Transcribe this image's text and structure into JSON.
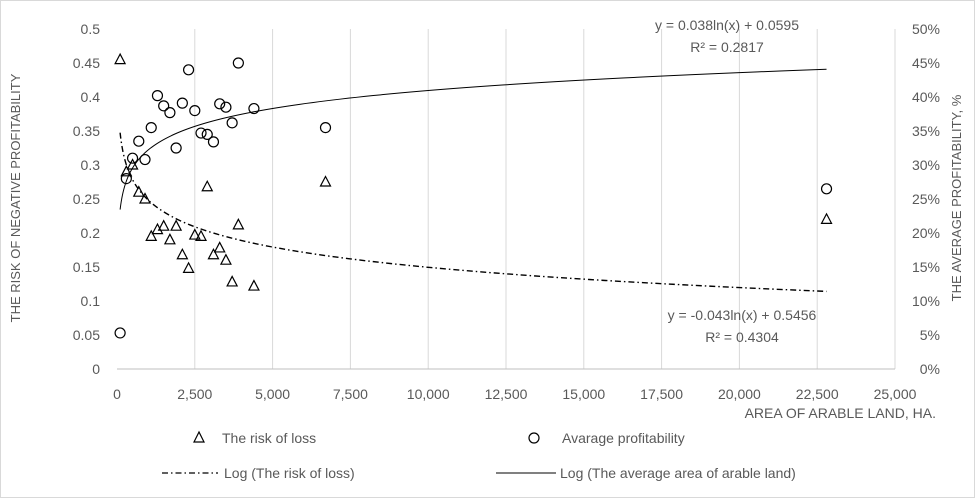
{
  "chart_data": {
    "type": "scatter",
    "title": "",
    "xlabel": "AREA OF ARABLE LAND, HA.",
    "ylabel_left": "THE RISK OF NEGATIVE PROFITABILITY",
    "ylabel_right": "THE AVERAGE  PROFITABILITY, %",
    "xlim": [
      0,
      25000
    ],
    "ylim_left": [
      0,
      0.5
    ],
    "ylim_right": [
      0,
      50
    ],
    "x_ticks": [
      "0",
      "2,500",
      "5,000",
      "7,500",
      "10,000",
      "12,500",
      "15,000",
      "17,500",
      "20,000",
      "22,500",
      "25,000"
    ],
    "y_left_ticks": [
      "0",
      "0.05",
      "0.1",
      "0.15",
      "0.2",
      "0.25",
      "0.3",
      "0.35",
      "0.4",
      "0.45",
      "0.5"
    ],
    "y_right_ticks": [
      "0%",
      "5%",
      "10%",
      "15%",
      "20%",
      "25%",
      "30%",
      "35%",
      "40%",
      "45%",
      "50%"
    ],
    "grid": "vertical",
    "legend_position": "bottom",
    "series": [
      {
        "name": "The risk of loss",
        "marker": "triangle",
        "axis": "left",
        "points": [
          [
            100,
            0.455
          ],
          [
            300,
            0.29
          ],
          [
            500,
            0.3
          ],
          [
            700,
            0.26
          ],
          [
            900,
            0.25
          ],
          [
            1100,
            0.195
          ],
          [
            1300,
            0.205
          ],
          [
            1500,
            0.21
          ],
          [
            1700,
            0.19
          ],
          [
            1900,
            0.21
          ],
          [
            2100,
            0.168
          ],
          [
            2300,
            0.148
          ],
          [
            2500,
            0.197
          ],
          [
            2700,
            0.195
          ],
          [
            2900,
            0.268
          ],
          [
            3100,
            0.168
          ],
          [
            3300,
            0.178
          ],
          [
            3500,
            0.16
          ],
          [
            3700,
            0.128
          ],
          [
            3900,
            0.212
          ],
          [
            4400,
            0.122
          ],
          [
            6700,
            0.275
          ],
          [
            22800,
            0.22
          ]
        ]
      },
      {
        "name": "Avarage profitability",
        "marker": "circle",
        "axis": "right",
        "points": [
          [
            100,
            5.3
          ],
          [
            300,
            28
          ],
          [
            500,
            31
          ],
          [
            700,
            33.5
          ],
          [
            900,
            30.8
          ],
          [
            1100,
            35.5
          ],
          [
            1300,
            40.2
          ],
          [
            1500,
            38.7
          ],
          [
            1700,
            37.7
          ],
          [
            1900,
            32.5
          ],
          [
            2100,
            39.1
          ],
          [
            2300,
            44
          ],
          [
            2500,
            38
          ],
          [
            2700,
            34.7
          ],
          [
            2900,
            34.5
          ],
          [
            3100,
            33.4
          ],
          [
            3300,
            39
          ],
          [
            3500,
            38.5
          ],
          [
            3700,
            36.2
          ],
          [
            3900,
            45
          ],
          [
            4400,
            38.3
          ],
          [
            6700,
            35.5
          ],
          [
            22800,
            26.5
          ]
        ]
      }
    ],
    "trendlines": [
      {
        "name": "Log (The risk of loss)",
        "style": "dash-dot",
        "axis": "left",
        "a": -0.043,
        "b": 0.5456,
        "x_range": [
          100,
          22800
        ],
        "equation": "y = -0.043ln(x) + 0.5456",
        "r2": "R² = 0.4304"
      },
      {
        "name": "Log (The average area of arable land)",
        "style": "solid",
        "axis": "left",
        "a": 0.038,
        "b": 0.0595,
        "x_range": [
          100,
          22800
        ],
        "equation": "y = 0.038ln(x) + 0.0595",
        "r2": "R² = 0.2817"
      }
    ]
  },
  "colors": {
    "axis": "#bfbfbf",
    "grid": "#d9d9d9",
    "text": "#595959",
    "series": "#000000"
  }
}
